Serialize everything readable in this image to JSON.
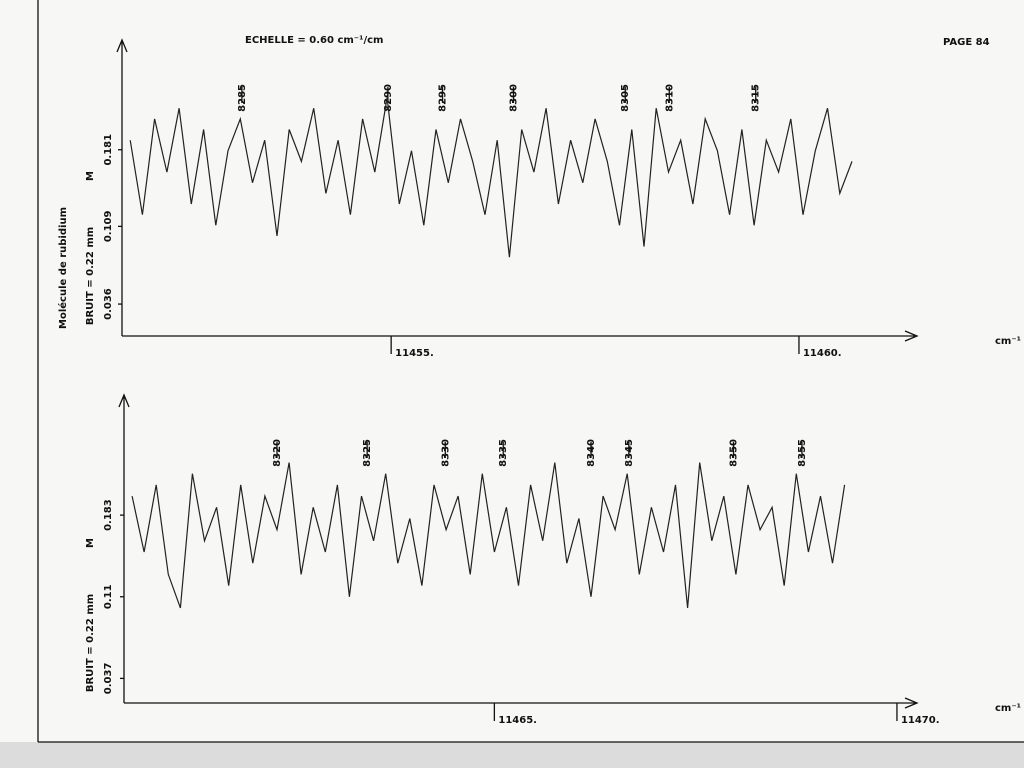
{
  "page_label": "PAGE 84",
  "scale": "ECHELLE = 0.60 cm⁻¹/cm",
  "molecule": "Molécule de rubidium",
  "chart_data": [
    {
      "type": "line",
      "y_label": "BRUIT = 0.22 mm",
      "marker": "M",
      "x_unit": "cm⁻¹",
      "color": "#222",
      "xlim": [
        11451.7,
        11461.3
      ],
      "ylim": [
        0.006,
        0.27
      ],
      "xticks": [
        {
          "value": 11455,
          "label": "11455."
        },
        {
          "value": 11460,
          "label": "11460."
        }
      ],
      "yticks": [
        0.036,
        0.109,
        0.181
      ],
      "x": [
        11451.8,
        11451.95,
        11452.1,
        11452.25,
        11452.4,
        11452.55,
        11452.7,
        11452.85,
        11453,
        11453.15,
        11453.3,
        11453.45,
        11453.6,
        11453.75,
        11453.9,
        11454.05,
        11454.2,
        11454.35,
        11454.5,
        11454.65,
        11454.8,
        11454.95,
        11455.1,
        11455.25,
        11455.4,
        11455.55,
        11455.7,
        11455.85,
        11456,
        11456.15,
        11456.3,
        11456.45,
        11456.6,
        11456.75,
        11456.9,
        11457.05,
        11457.2,
        11457.35,
        11457.5,
        11457.65,
        11457.8,
        11457.95,
        11458.1,
        11458.25,
        11458.4,
        11458.55,
        11458.7,
        11458.85,
        11459,
        11459.15,
        11459.3,
        11459.45,
        11459.6,
        11459.75,
        11459.9,
        11460.05,
        11460.2,
        11460.35,
        11460.5,
        11460.65
      ],
      "values": [
        0.19,
        0.12,
        0.21,
        0.16,
        0.22,
        0.13,
        0.2,
        0.11,
        0.18,
        0.21,
        0.15,
        0.19,
        0.1,
        0.2,
        0.17,
        0.22,
        0.14,
        0.19,
        0.12,
        0.21,
        0.16,
        0.23,
        0.13,
        0.18,
        0.11,
        0.2,
        0.15,
        0.21,
        0.17,
        0.12,
        0.19,
        0.08,
        0.2,
        0.16,
        0.22,
        0.13,
        0.19,
        0.15,
        0.21,
        0.17,
        0.11,
        0.2,
        0.09,
        0.22,
        0.16,
        0.19,
        0.13,
        0.21,
        0.18,
        0.12,
        0.2,
        0.11,
        0.19,
        0.16,
        0.21,
        0.12,
        0.18,
        0.22,
        0.14,
        0.17
      ],
      "lines": [
        {
          "label": "8285",
          "x": 11453.17
        },
        {
          "label": "8290",
          "x": 11454.96
        },
        {
          "label": "8295",
          "x": 11455.63
        },
        {
          "label": "8300",
          "x": 11456.5
        },
        {
          "label": "8305",
          "x": 11457.87
        },
        {
          "label": "8310",
          "x": 11458.41
        },
        {
          "label": "8315",
          "x": 11459.47
        }
      ]
    },
    {
      "type": "line",
      "y_label": "BRUIT = 0.22 mm",
      "marker": "M",
      "x_unit": "cm⁻¹",
      "color": "#222",
      "xlim": [
        11460.4,
        11470.1
      ],
      "ylim": [
        0.015,
        0.277
      ],
      "xticks": [
        {
          "value": 11465,
          "label": "11465."
        },
        {
          "value": 11470,
          "label": "11470."
        }
      ],
      "yticks": [
        0.037,
        0.11,
        0.183
      ],
      "x": [
        11460.5,
        11460.65,
        11460.8,
        11460.95,
        11461.1,
        11461.25,
        11461.4,
        11461.55,
        11461.7,
        11461.85,
        11462,
        11462.15,
        11462.3,
        11462.45,
        11462.6,
        11462.75,
        11462.9,
        11463.05,
        11463.2,
        11463.35,
        11463.5,
        11463.65,
        11463.8,
        11463.95,
        11464.1,
        11464.25,
        11464.4,
        11464.55,
        11464.7,
        11464.85,
        11465,
        11465.15,
        11465.3,
        11465.45,
        11465.6,
        11465.75,
        11465.9,
        11466.05,
        11466.2,
        11466.35,
        11466.5,
        11466.65,
        11466.8,
        11466.95,
        11467.1,
        11467.25,
        11467.4,
        11467.55,
        11467.7,
        11467.85,
        11468,
        11468.15,
        11468.3,
        11468.45,
        11468.6,
        11468.75,
        11468.9,
        11469.05,
        11469.2,
        11469.35
      ],
      "values": [
        0.2,
        0.15,
        0.21,
        0.13,
        0.1,
        0.22,
        0.16,
        0.19,
        0.12,
        0.21,
        0.14,
        0.2,
        0.17,
        0.23,
        0.13,
        0.19,
        0.15,
        0.21,
        0.11,
        0.2,
        0.16,
        0.22,
        0.14,
        0.18,
        0.12,
        0.21,
        0.17,
        0.2,
        0.13,
        0.22,
        0.15,
        0.19,
        0.12,
        0.21,
        0.16,
        0.23,
        0.14,
        0.18,
        0.11,
        0.2,
        0.17,
        0.22,
        0.13,
        0.19,
        0.15,
        0.21,
        0.1,
        0.23,
        0.16,
        0.2,
        0.13,
        0.21,
        0.17,
        0.19,
        0.12,
        0.22,
        0.15,
        0.2,
        0.14,
        0.21
      ],
      "lines": [
        {
          "label": "8320",
          "x": 11462.3
        },
        {
          "label": "8325",
          "x": 11463.42
        },
        {
          "label": "8330",
          "x": 11464.39
        },
        {
          "label": "8335",
          "x": 11465.11
        },
        {
          "label": "8340",
          "x": 11466.2
        },
        {
          "label": "8345",
          "x": 11466.67
        },
        {
          "label": "8350",
          "x": 11467.97
        },
        {
          "label": "8355",
          "x": 11468.82
        }
      ]
    }
  ]
}
